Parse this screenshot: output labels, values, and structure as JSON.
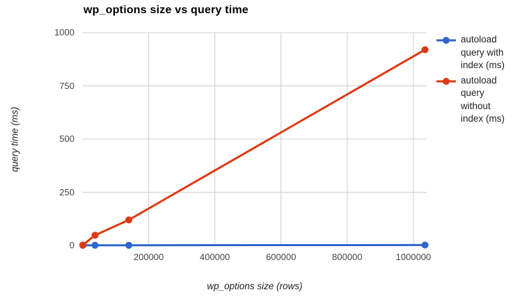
{
  "chart_data": {
    "type": "line",
    "title": "wp_options size vs query time",
    "xlabel": "wp_options size (rows)",
    "ylabel": "query time (ms)",
    "x": [
      1000,
      38000,
      140000,
      1035000
    ],
    "series": [
      {
        "name": "autoload query with index (ms)",
        "legend_label": "autoload\nquery with\nindex (ms)",
        "color": "#3366cc",
        "values": [
          1,
          1,
          1,
          2
        ]
      },
      {
        "name": "autoload query without index (ms)",
        "legend_label": "autoload\nquery\nwithout\nindex (ms)",
        "color": "#dc3912",
        "values": [
          2,
          48,
          120,
          920
        ]
      }
    ],
    "xlim": [
      0,
      1040000
    ],
    "ylim": [
      0,
      1000
    ],
    "x_ticks": [
      200000,
      400000,
      600000,
      800000,
      1000000
    ],
    "x_tick_labels": [
      "200000",
      "400000",
      "600000",
      "800000",
      "1000000"
    ],
    "y_ticks": [
      0,
      250,
      500,
      750,
      1000
    ],
    "y_tick_labels": [
      "0",
      "250",
      "500",
      "750",
      "1000"
    ],
    "grid": true,
    "legend_position": "right",
    "colors": {
      "gridline": "#cccccc",
      "tick_text": "#444444",
      "axis_title_text": "#222222",
      "title_text": "#000000",
      "background": "#ffffff"
    }
  }
}
